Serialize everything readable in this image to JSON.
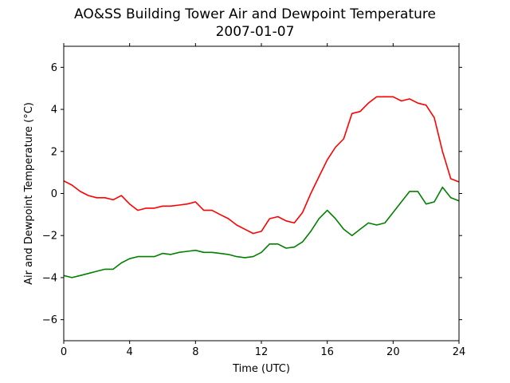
{
  "chart_data": {
    "type": "line",
    "title": "AO&SS Building Tower Air and Dewpoint Temperature",
    "subtitle": "2007-01-07",
    "xlabel": "Time (UTC)",
    "ylabel": "Air and Dewpoint Temperature (°C)",
    "xlim": [
      0,
      24
    ],
    "ylim": [
      -7,
      7
    ],
    "xticks": [
      0,
      4,
      8,
      12,
      16,
      20,
      24
    ],
    "yticks": [
      -6,
      -4,
      -2,
      0,
      2,
      4,
      6
    ],
    "grid": false,
    "series": [
      {
        "color": "#ff0000",
        "x": [
          0,
          0.5,
          1,
          1.5,
          2,
          2.5,
          3,
          3.5,
          4,
          4.5,
          5,
          5.5,
          6,
          6.5,
          7,
          7.5,
          8,
          8.5,
          9,
          9.5,
          10,
          10.5,
          11,
          11.5,
          12,
          12.5,
          13,
          13.5,
          14,
          14.5,
          15,
          15.5,
          16,
          16.5,
          17,
          17.5,
          18,
          18.5,
          19,
          19.5,
          20,
          20.5,
          21,
          21.5,
          22,
          22.5,
          23,
          23.5,
          24
        ],
        "values": [
          0.6,
          0.4,
          0.1,
          -0.1,
          -0.2,
          -0.2,
          -0.3,
          -0.1,
          -0.5,
          -0.8,
          -0.7,
          -0.7,
          -0.6,
          -0.6,
          -0.55,
          -0.5,
          -0.4,
          -0.8,
          -0.8,
          -1.0,
          -1.2,
          -1.5,
          -1.7,
          -1.9,
          -1.8,
          -1.2,
          -1.1,
          -1.3,
          -1.4,
          -0.9,
          0.0,
          0.8,
          1.6,
          2.2,
          2.6,
          3.8,
          3.9,
          4.3,
          4.6,
          4.6,
          4.6,
          4.4,
          4.5,
          4.3,
          4.2,
          3.6,
          2.0,
          0.7,
          0.55
        ]
      },
      {
        "color": "#008000",
        "x": [
          0,
          0.5,
          1,
          1.5,
          2,
          2.5,
          3,
          3.5,
          4,
          4.5,
          5,
          5.5,
          6,
          6.5,
          7,
          7.5,
          8,
          8.5,
          9,
          9.5,
          10,
          10.5,
          11,
          11.5,
          12,
          12.5,
          13,
          13.5,
          14,
          14.5,
          15,
          15.5,
          16,
          16.5,
          17,
          17.5,
          18,
          18.5,
          19,
          19.5,
          20,
          20.5,
          21,
          21.5,
          22,
          22.5,
          23,
          23.5,
          24
        ],
        "values": [
          -3.9,
          -4.0,
          -3.9,
          -3.8,
          -3.7,
          -3.6,
          -3.6,
          -3.3,
          -3.1,
          -3.0,
          -3.0,
          -3.0,
          -2.85,
          -2.9,
          -2.8,
          -2.75,
          -2.7,
          -2.8,
          -2.8,
          -2.85,
          -2.9,
          -3.0,
          -3.05,
          -3.0,
          -2.8,
          -2.4,
          -2.4,
          -2.6,
          -2.55,
          -2.3,
          -1.8,
          -1.2,
          -0.8,
          -1.2,
          -1.7,
          -2.0,
          -1.7,
          -1.4,
          -1.5,
          -1.4,
          -0.9,
          -0.4,
          0.1,
          0.1,
          -0.5,
          -0.4,
          0.3,
          -0.2,
          -0.35
        ]
      }
    ]
  }
}
